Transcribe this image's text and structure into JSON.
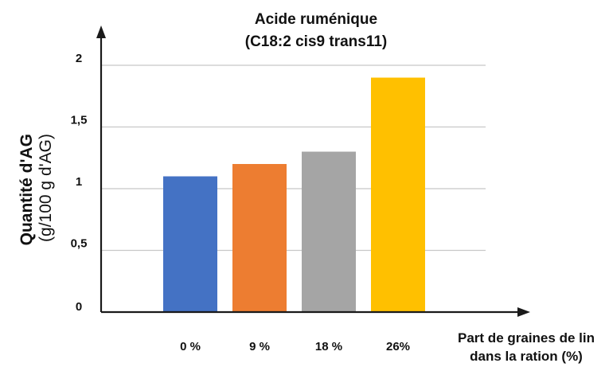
{
  "chart_data": {
    "type": "bar",
    "title_lines": [
      "Acide ruménique",
      "(C18:2 cis9 trans11)"
    ],
    "categories": [
      "0 %",
      "9 %",
      "18 %",
      "26%"
    ],
    "values": [
      1.1,
      1.2,
      1.3,
      1.9
    ],
    "colors": [
      "#4472c4",
      "#ed7d31",
      "#a5a5a5",
      "#ffc000"
    ],
    "ylabel_main": "Quantité d'AG",
    "ylabel_sub": "(g/100 g d'AG)",
    "xlabel_lines": [
      "Part de graines de lin",
      "dans la ration (%)"
    ],
    "ylim": [
      0,
      2
    ],
    "yticks": [
      0,
      0.5,
      1,
      1.5,
      2
    ],
    "ytick_labels": [
      "0",
      "0,5",
      "1",
      "1,5",
      "2"
    ],
    "grid": true,
    "legend": false
  }
}
